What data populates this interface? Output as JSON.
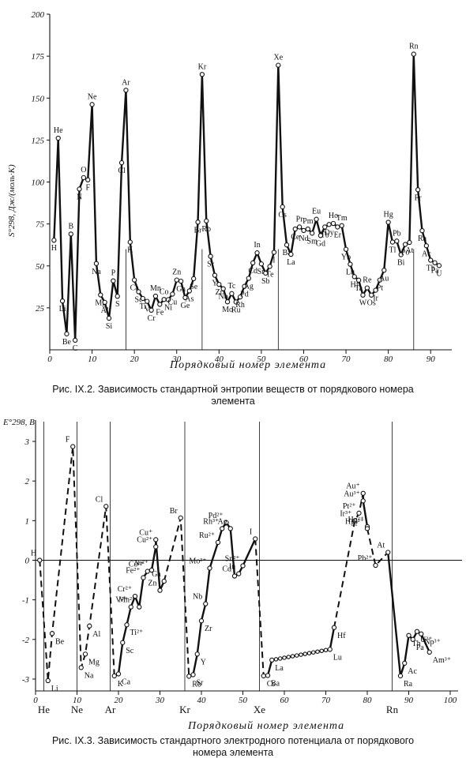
{
  "chart_data": [
    {
      "type": "line",
      "ylabel": "S°298, Дж/(моль·K)",
      "xlabel": "Порядковый номер элемента",
      "xlim": [
        0,
        95
      ],
      "ylim": [
        0,
        200
      ],
      "xticks": [
        0,
        10,
        20,
        30,
        40,
        50,
        60,
        70,
        80,
        90
      ],
      "yticks": [
        25,
        50,
        75,
        100,
        125,
        150,
        175,
        200
      ],
      "series": [
        {
          "values": [
            [
              1,
              65.3,
              "H"
            ],
            [
              2,
              126.1,
              "He"
            ],
            [
              3,
              29.1,
              "Li"
            ],
            [
              4,
              9.5,
              "Be"
            ],
            [
              5,
              69.0,
              "B"
            ],
            [
              6,
              5.7,
              "C"
            ],
            [
              7,
              95.8,
              "N"
            ],
            [
              8,
              102.6,
              "O"
            ],
            [
              9,
              101.3,
              "F"
            ],
            [
              10,
              146.2,
              "Ne"
            ],
            [
              11,
              51.4,
              "Na"
            ],
            [
              12,
              32.7,
              "Mg"
            ],
            [
              13,
              28.3,
              "Al"
            ],
            [
              14,
              18.8,
              "Si"
            ],
            [
              15,
              41.1,
              "P"
            ],
            [
              16,
              31.9,
              "S"
            ],
            [
              17,
              111.5,
              "Cl"
            ],
            [
              18,
              154.7,
              "Ar"
            ],
            [
              19,
              64.2,
              "K"
            ],
            [
              20,
              41.6,
              "Ca"
            ],
            [
              21,
              34.6,
              "Sc"
            ],
            [
              22,
              30.6,
              "Ti"
            ],
            [
              23,
              28.9,
              "V"
            ],
            [
              24,
              23.6,
              "Cr"
            ],
            [
              25,
              32.0,
              "Mn"
            ],
            [
              26,
              27.1,
              "Fe"
            ],
            [
              27,
              30.0,
              "Co"
            ],
            [
              28,
              29.9,
              "Ni"
            ],
            [
              29,
              33.2,
              "Cu"
            ],
            [
              30,
              41.6,
              "Zn"
            ],
            [
              31,
              40.9,
              "Ga"
            ],
            [
              32,
              31.1,
              "Ge"
            ],
            [
              33,
              35.1,
              "As"
            ],
            [
              34,
              42.4,
              "Se"
            ],
            [
              35,
              76.1,
              "Br"
            ],
            [
              36,
              164.1,
              "Kr"
            ],
            [
              37,
              76.8,
              "Rb"
            ],
            [
              38,
              55.7,
              "Sr"
            ],
            [
              39,
              44.4,
              "Y"
            ],
            [
              40,
              39.0,
              "Zr"
            ],
            [
              41,
              36.4,
              "Nb"
            ],
            [
              42,
              28.6,
              "Mo"
            ],
            [
              43,
              33.5,
              "Tc"
            ],
            [
              44,
              28.5,
              "Ru"
            ],
            [
              45,
              31.5,
              "Rh"
            ],
            [
              46,
              37.8,
              "Pd"
            ],
            [
              47,
              42.6,
              "Ag"
            ],
            [
              48,
              51.8,
              "Cd"
            ],
            [
              49,
              57.8,
              "In"
            ],
            [
              50,
              51.2,
              "Sn"
            ],
            [
              51,
              45.7,
              "Sb"
            ],
            [
              52,
              49.7,
              "Te"
            ],
            [
              53,
              58.1,
              "I"
            ],
            [
              54,
              169.6,
              "Xe"
            ],
            [
              55,
              85.2,
              "Cs"
            ],
            [
              56,
              62.5,
              "Ba"
            ],
            [
              57,
              56.9,
              "La"
            ],
            [
              58,
              72.0,
              "Ce"
            ],
            [
              59,
              73.2,
              "Pr"
            ],
            [
              60,
              71.1,
              "Nd"
            ],
            [
              61,
              72.0,
              "Pm"
            ],
            [
              62,
              69.5,
              "Sm"
            ],
            [
              63,
              77.8,
              "Eu"
            ],
            [
              64,
              68.1,
              "Gd"
            ],
            [
              65,
              73.2,
              "Tb"
            ],
            [
              66,
              74.7,
              "Dy"
            ],
            [
              67,
              75.3,
              "Ho"
            ],
            [
              68,
              73.2,
              "Er"
            ],
            [
              69,
              74.0,
              "Tm"
            ],
            [
              70,
              59.9,
              "Yb"
            ],
            [
              71,
              51.0,
              "Lu"
            ],
            [
              72,
              43.6,
              "Hf"
            ],
            [
              73,
              41.5,
              "Ta"
            ],
            [
              74,
              32.6,
              "W"
            ],
            [
              75,
              36.9,
              "Re"
            ],
            [
              76,
              32.6,
              "Os"
            ],
            [
              77,
              35.5,
              "Ir"
            ],
            [
              78,
              41.6,
              "Pt"
            ],
            [
              79,
              47.4,
              "Au"
            ],
            [
              80,
              76.0,
              "Hg"
            ],
            [
              81,
              64.2,
              "Tl"
            ],
            [
              82,
              64.8,
              "Pb"
            ],
            [
              83,
              56.7,
              "Bi"
            ],
            [
              84,
              62.8,
              "Po"
            ],
            [
              85,
              64.0,
              "At"
            ],
            [
              86,
              176.2,
              "Rn"
            ],
            [
              87,
              95.4,
              "Fr"
            ],
            [
              88,
              71.0,
              "Ra"
            ],
            [
              89,
              62.0,
              "Ac"
            ],
            [
              90,
              53.4,
              "Th"
            ],
            [
              91,
              51.9,
              "Pa"
            ],
            [
              92,
              50.2,
              "U"
            ]
          ]
        }
      ],
      "vlines": [
        18,
        36,
        54,
        86
      ]
    },
    {
      "type": "line",
      "ylabel": "E°298, В",
      "xlabel": "Порядковый номер элемента",
      "xlim": [
        0,
        100
      ],
      "ylim": [
        -3.3,
        3.3
      ],
      "xticks": [
        0,
        10,
        20,
        30,
        40,
        50,
        60,
        70,
        80,
        90,
        100
      ],
      "yticks": [
        -3,
        -2,
        -1,
        0,
        1,
        2,
        3
      ],
      "noble_gases": [
        {
          "x": 2,
          "label": "He"
        },
        {
          "x": 10,
          "label": "Ne"
        },
        {
          "x": 18,
          "label": "Ar"
        },
        {
          "x": 36,
          "label": "Kr"
        },
        {
          "x": 54,
          "label": "Xe"
        },
        {
          "x": 86,
          "label": "Rn"
        }
      ],
      "series": [
        {
          "values": [
            [
              1,
              0.0,
              "H"
            ],
            [
              3,
              -3.04,
              "Li"
            ],
            [
              4,
              -1.85,
              "Be"
            ],
            [
              9,
              2.87,
              "F"
            ],
            [
              11,
              -2.71,
              "Na"
            ],
            [
              12,
              -2.37,
              "Mg"
            ],
            [
              13,
              -1.66,
              "Al"
            ],
            [
              17,
              1.36,
              "Cl"
            ],
            [
              19,
              -2.92,
              "K"
            ],
            [
              20,
              -2.87,
              "Ca"
            ],
            [
              21,
              -2.08,
              "Sc"
            ],
            [
              22,
              -1.63,
              "Ti²⁺"
            ],
            [
              23,
              -1.18,
              "V²⁺"
            ],
            [
              24,
              -0.91,
              "Cr²⁺"
            ],
            [
              25,
              -1.18,
              "Mn²⁺"
            ],
            [
              26,
              -0.44,
              "Fe²⁺"
            ],
            [
              27,
              -0.28,
              "Co²⁺"
            ],
            [
              28,
              -0.25,
              "Ni²⁺"
            ],
            [
              29,
              0.34,
              "Cu²⁺"
            ],
            [
              29,
              0.52,
              "Cu⁺"
            ],
            [
              30,
              -0.76,
              "Zn"
            ],
            [
              31,
              -0.53,
              "Ga"
            ],
            [
              35,
              1.07,
              "Br"
            ],
            [
              37,
              -2.93,
              "Rb"
            ],
            [
              38,
              -2.89,
              "Sr"
            ],
            [
              39,
              -2.37,
              "Y"
            ],
            [
              40,
              -1.53,
              "Zr"
            ],
            [
              41,
              -1.1,
              "Nb"
            ],
            [
              42,
              -0.2,
              "Mo³⁺"
            ],
            [
              44,
              0.45,
              "Ru²⁺"
            ],
            [
              45,
              0.8,
              "Rh³⁺"
            ],
            [
              46,
              0.95,
              "Pd²⁺"
            ],
            [
              47,
              0.8,
              "Ag"
            ],
            [
              48,
              -0.4,
              "Cd"
            ],
            [
              49,
              -0.34,
              "In"
            ],
            [
              50,
              -0.14,
              "Sn²⁺"
            ],
            [
              53,
              0.54,
              "I"
            ],
            [
              55,
              -2.92,
              "Cs"
            ],
            [
              56,
              -2.91,
              "Ba"
            ],
            [
              57,
              -2.52,
              "La"
            ],
            [
              71,
              -2.25,
              "Lu"
            ],
            [
              72,
              -1.7,
              "Hf"
            ],
            [
              78,
              1.19,
              "Pt²⁺"
            ],
            [
              77,
              1.0,
              "Ir³⁺"
            ],
            [
              79,
              1.5,
              "Au³⁺"
            ],
            [
              79,
              1.69,
              "Au⁺"
            ],
            [
              80,
              0.85,
              "Hg²⁺"
            ],
            [
              80,
              0.8,
              "Hg₂²⁺"
            ],
            [
              82,
              -0.13,
              "Pb²⁺"
            ],
            [
              85,
              0.2,
              "At"
            ],
            [
              88,
              -2.92,
              "Ra"
            ],
            [
              89,
              -2.6,
              "Ac"
            ],
            [
              90,
              -1.9,
              "Th"
            ],
            [
              91,
              -2.0,
              "Pa"
            ],
            [
              92,
              -1.8,
              "U³⁺"
            ],
            [
              93,
              -1.86,
              "Np³⁺"
            ],
            [
              95,
              -2.32,
              "Am³⁺"
            ]
          ]
        }
      ]
    }
  ],
  "captions": {
    "fig1_line1": "Рис. IX.2. Зависимость стандартной энтропии веществ от порядкового номера",
    "fig1_line2": "элемента",
    "fig2_line1": "Рис. IX.3. Зависимость стандартного электродного потенциала от порядкового",
    "fig2_line2": "номера элемента"
  }
}
